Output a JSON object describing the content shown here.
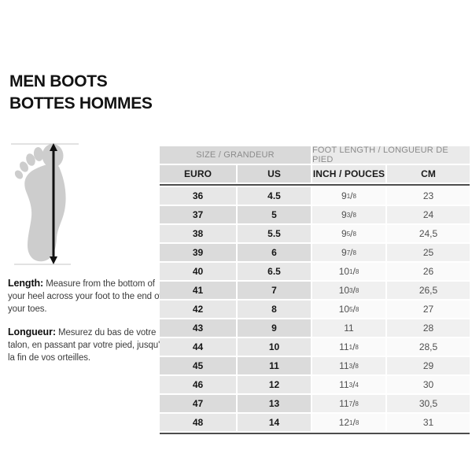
{
  "title": {
    "line1": "MEN BOOTS",
    "line2": "BOTTES HOMMES"
  },
  "figure": {
    "icon": "foot-silhouette-icon",
    "arrow_icon": "measure-length-arrow-icon"
  },
  "instructions": {
    "en_label": "Length:",
    "en_text": " Measure from the bottom of your heel across your foot to the end of your toes.",
    "fr_label": "Longueur:",
    "fr_text": " Mesurez du bas de votre talon, en passant par votre pied, jusqu'à la fin de vos orteilles."
  },
  "table": {
    "header_groups": [
      {
        "label": "SIZE / GRANDEUR"
      },
      {
        "label": "FOOT LENGTH / LONGUEUR DE PIED"
      }
    ],
    "columns": [
      {
        "label": "EURO"
      },
      {
        "label": "US"
      },
      {
        "label": "INCH / POUCES"
      },
      {
        "label": "CM"
      }
    ],
    "rows": [
      {
        "euro": "36",
        "us": "4.5",
        "inch": "9 1/8",
        "cm": "23"
      },
      {
        "euro": "37",
        "us": "5",
        "inch": "9 3/8",
        "cm": "24"
      },
      {
        "euro": "38",
        "us": "5.5",
        "inch": "9 5/8",
        "cm": "24,5"
      },
      {
        "euro": "39",
        "us": "6",
        "inch": "9 7/8",
        "cm": "25"
      },
      {
        "euro": "40",
        "us": "6.5",
        "inch": "10 1/8",
        "cm": "26"
      },
      {
        "euro": "41",
        "us": "7",
        "inch": "10 3/8",
        "cm": "26,5"
      },
      {
        "euro": "42",
        "us": "8",
        "inch": "10 5/8",
        "cm": "27"
      },
      {
        "euro": "43",
        "us": "9",
        "inch": "11",
        "cm": "28"
      },
      {
        "euro": "44",
        "us": "10",
        "inch": "11 1/8",
        "cm": "28,5"
      },
      {
        "euro": "45",
        "us": "11",
        "inch": "11 3/8",
        "cm": "29"
      },
      {
        "euro": "46",
        "us": "12",
        "inch": "11 3/4",
        "cm": "30"
      },
      {
        "euro": "47",
        "us": "13",
        "inch": "11 7/8",
        "cm": "30,5"
      },
      {
        "euro": "48",
        "us": "14",
        "inch": "12 1/8",
        "cm": "31"
      }
    ]
  },
  "colors": {
    "header_group_left_bg": "#d9d9d9",
    "header_group_right_bg": "#eaeaea",
    "row_left_even_bg": "#e7e7e7",
    "row_left_odd_bg": "#dbdbdb",
    "row_right_even_bg": "#fafafa",
    "row_right_odd_bg": "#f0f0f0",
    "divider": "#4d4d4d",
    "header_muted_text": "#8b8b8b",
    "foot_silhouette": "#cdcdcd"
  }
}
